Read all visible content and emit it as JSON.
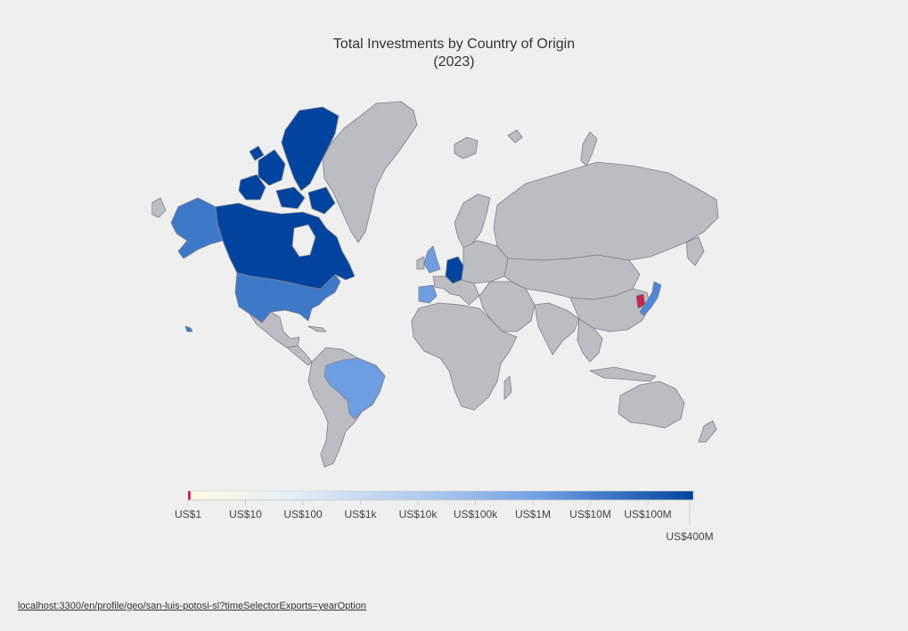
{
  "title_line1": "Total Investments by Country of Origin",
  "title_line2": "(2023)",
  "footer_url": "localhost:3300/en/profile/geo/san-luis-potosi-sl?timeSelectorExports=yearOption",
  "colors": {
    "background": "#efefef",
    "no_data": "#bcbdc3",
    "border": "#7d7f88",
    "scale_low": "#fffbe3",
    "scale_mid": "#6e9ee2",
    "scale_high": "#00449f",
    "negative": "#c4234f"
  },
  "legend": {
    "ticks": [
      "US$1",
      "US$10",
      "US$100",
      "US$1k",
      "US$10k",
      "US$100k",
      "US$1M",
      "US$10M",
      "US$100M"
    ],
    "max_label": "US$400M"
  },
  "chart_data": {
    "type": "choropleth",
    "title": "Total Investments by Country of Origin",
    "subtitle": "(2023)",
    "scale": "log",
    "range": [
      "US$1",
      "US$400M"
    ],
    "regions": [
      {
        "name": "Canada",
        "level": 0.98
      },
      {
        "name": "Alaska",
        "level": 0.72
      },
      {
        "name": "United States",
        "level": 0.72
      },
      {
        "name": "Brazil",
        "level": 0.55
      },
      {
        "name": "United Kingdom",
        "level": 0.6
      },
      {
        "name": "Spain",
        "level": 0.6
      },
      {
        "name": "Germany",
        "level": 0.95
      },
      {
        "name": "Japan",
        "level": 0.6
      },
      {
        "name": "South Korea",
        "level": "negative"
      }
    ]
  }
}
